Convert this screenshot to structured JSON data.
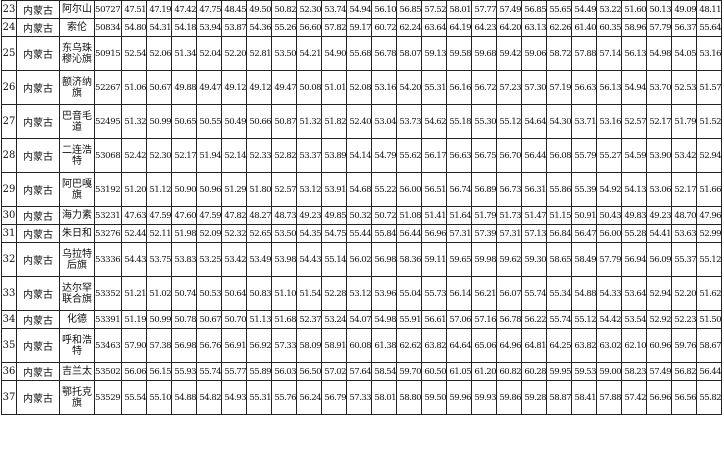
{
  "columns_count": 27,
  "rows": [
    {
      "idx": "23",
      "province": "内蒙古",
      "station": "阿尔山",
      "id": "50727",
      "values": [
        "47.51",
        "47.19",
        "47.42",
        "47.75",
        "48.45",
        "49.50",
        "50.82",
        "52.30",
        "53.74",
        "54.94",
        "56.10",
        "56.85",
        "57.52",
        "58.01",
        "57.77",
        "57.49",
        "56.85",
        "55.65",
        "54.49",
        "53.22",
        "51.60",
        "50.13",
        "49.09",
        "48.11"
      ]
    },
    {
      "idx": "24",
      "province": "内蒙古",
      "station": "索伦",
      "id": "50834",
      "values": [
        "54.80",
        "54.31",
        "54.18",
        "53.94",
        "53.87",
        "54.36",
        "55.26",
        "56.60",
        "57.82",
        "59.17",
        "60.72",
        "62.24",
        "63.64",
        "64.19",
        "64.23",
        "64.20",
        "63.13",
        "62.26",
        "61.40",
        "60.35",
        "58.96",
        "57.79",
        "56.37",
        "55.64"
      ]
    },
    {
      "idx": "25",
      "province": "内蒙古",
      "station": "东乌珠穆沁旗",
      "id": "50915",
      "values": [
        "52.54",
        "52.06",
        "51.34",
        "52.04",
        "52.20",
        "52.81",
        "53.50",
        "54.21",
        "54.90",
        "55.68",
        "56.78",
        "58.07",
        "59.13",
        "59.58",
        "59.68",
        "59.42",
        "59.06",
        "58.72",
        "57.88",
        "57.14",
        "56.13",
        "54.98",
        "54.05",
        "53.16"
      ]
    },
    {
      "idx": "26",
      "province": "内蒙古",
      "station": "额济纳旗",
      "id": "52267",
      "values": [
        "51.06",
        "50.67",
        "49.88",
        "49.47",
        "49.12",
        "49.12",
        "49.47",
        "50.08",
        "51.01",
        "52.08",
        "53.16",
        "54.20",
        "55.31",
        "56.16",
        "56.72",
        "57.23",
        "57.30",
        "57.19",
        "56.63",
        "56.13",
        "54.94",
        "53.70",
        "52.53",
        "51.57"
      ]
    },
    {
      "idx": "27",
      "province": "内蒙古",
      "station": "巴音毛道",
      "id": "52495",
      "values": [
        "51.32",
        "50.99",
        "50.65",
        "50.55",
        "50.49",
        "50.66",
        "50.87",
        "51.32",
        "51.82",
        "52.40",
        "53.04",
        "53.73",
        "54.62",
        "55.18",
        "55.30",
        "55.12",
        "54.64",
        "54.30",
        "53.71",
        "53.16",
        "52.57",
        "52.17",
        "51.79",
        "51.52"
      ]
    },
    {
      "idx": "28",
      "province": "内蒙古",
      "station": "二连浩特",
      "id": "53068",
      "values": [
        "52.42",
        "52.30",
        "52.17",
        "51.94",
        "52.14",
        "52.33",
        "52.82",
        "53.37",
        "53.89",
        "54.14",
        "54.79",
        "55.62",
        "56.17",
        "56.63",
        "56.75",
        "56.70",
        "56.44",
        "56.08",
        "55.79",
        "55.27",
        "54.59",
        "53.90",
        "53.42",
        "52.94"
      ]
    },
    {
      "idx": "29",
      "province": "内蒙古",
      "station": "阿巴嘎旗",
      "id": "53192",
      "values": [
        "51.20",
        "51.12",
        "50.90",
        "50.96",
        "51.29",
        "51.80",
        "52.57",
        "53.12",
        "53.91",
        "54.68",
        "55.22",
        "56.00",
        "56.51",
        "56.74",
        "56.89",
        "56.73",
        "56.31",
        "55.86",
        "55.39",
        "54.92",
        "54.13",
        "53.06",
        "52.17",
        "51.66"
      ]
    },
    {
      "idx": "30",
      "province": "内蒙古",
      "station": "海力素",
      "id": "53231",
      "values": [
        "47.63",
        "47.59",
        "47.60",
        "47.59",
        "47.82",
        "48.27",
        "48.73",
        "49.23",
        "49.85",
        "50.32",
        "50.72",
        "51.08",
        "51.41",
        "51.64",
        "51.79",
        "51.73",
        "51.47",
        "51.15",
        "50.91",
        "50.43",
        "49.83",
        "49.23",
        "48.70",
        "47.96"
      ]
    },
    {
      "idx": "31",
      "province": "内蒙古",
      "station": "朱日和",
      "id": "53276",
      "values": [
        "52.44",
        "52.11",
        "51.98",
        "52.09",
        "52.32",
        "52.65",
        "53.50",
        "54.35",
        "54.75",
        "55.44",
        "55.84",
        "56.44",
        "56.96",
        "57.31",
        "57.39",
        "57.31",
        "57.13",
        "56.84",
        "56.47",
        "56.00",
        "55.28",
        "54.41",
        "53.63",
        "52.99"
      ]
    },
    {
      "idx": "32",
      "province": "内蒙古",
      "station": "乌拉特后旗",
      "id": "53336",
      "values": [
        "54.43",
        "53.75",
        "53.83",
        "53.25",
        "53.42",
        "53.49",
        "53.98",
        "54.43",
        "55.14",
        "56.02",
        "56.98",
        "58.36",
        "59.11",
        "59.65",
        "59.98",
        "59.62",
        "59.30",
        "58.65",
        "58.49",
        "57.79",
        "56.94",
        "56.09",
        "55.37",
        "55.12"
      ]
    },
    {
      "idx": "33",
      "province": "内蒙古",
      "station": "达尔罕联合旗",
      "id": "53352",
      "values": [
        "51.21",
        "51.02",
        "50.74",
        "50.53",
        "50.64",
        "50.83",
        "51.10",
        "51.54",
        "52.28",
        "53.12",
        "53.96",
        "55.04",
        "55.73",
        "56.14",
        "56.21",
        "56.07",
        "55.74",
        "55.34",
        "54.88",
        "54.33",
        "53.64",
        "52.94",
        "52.20",
        "51.62"
      ]
    },
    {
      "idx": "34",
      "province": "内蒙古",
      "station": "化德",
      "id": "53391",
      "values": [
        "51.19",
        "50.99",
        "50.78",
        "50.67",
        "50.70",
        "51.13",
        "51.68",
        "52.37",
        "53.24",
        "54.07",
        "54.98",
        "55.91",
        "56.61",
        "57.06",
        "57.16",
        "56.78",
        "56.22",
        "55.74",
        "55.12",
        "54.42",
        "53.54",
        "52.92",
        "52.23",
        "51.50"
      ]
    },
    {
      "idx": "35",
      "province": "内蒙古",
      "station": "呼和浩特",
      "id": "53463",
      "values": [
        "57.90",
        "57.38",
        "56.98",
        "56.76",
        "56.91",
        "56.92",
        "57.33",
        "58.09",
        "58.91",
        "60.08",
        "61.38",
        "62.62",
        "63.82",
        "64.64",
        "65.06",
        "64.96",
        "64.81",
        "64.25",
        "63.82",
        "63.02",
        "62.10",
        "60.96",
        "59.76",
        "58.67"
      ]
    },
    {
      "idx": "36",
      "province": "内蒙古",
      "station": "吉兰太",
      "id": "53502",
      "values": [
        "56.06",
        "56.15",
        "55.93",
        "55.74",
        "55.77",
        "55.89",
        "56.03",
        "56.50",
        "57.02",
        "57.64",
        "58.54",
        "59.70",
        "60.50",
        "61.05",
        "61.20",
        "60.82",
        "60.28",
        "59.95",
        "59.53",
        "59.00",
        "58.23",
        "57.49",
        "56.82",
        "56.44"
      ]
    },
    {
      "idx": "37",
      "province": "内蒙古",
      "station": "鄂托克旗",
      "id": "53529",
      "values": [
        "55.54",
        "55.10",
        "54.88",
        "54.82",
        "54.93",
        "55.31",
        "55.76",
        "56.24",
        "56.79",
        "57.33",
        "58.01",
        "58.80",
        "59.50",
        "59.96",
        "59.93",
        "59.86",
        "59.28",
        "58.87",
        "58.41",
        "57.88",
        "57.42",
        "56.96",
        "56.56",
        "55.82"
      ]
    }
  ]
}
